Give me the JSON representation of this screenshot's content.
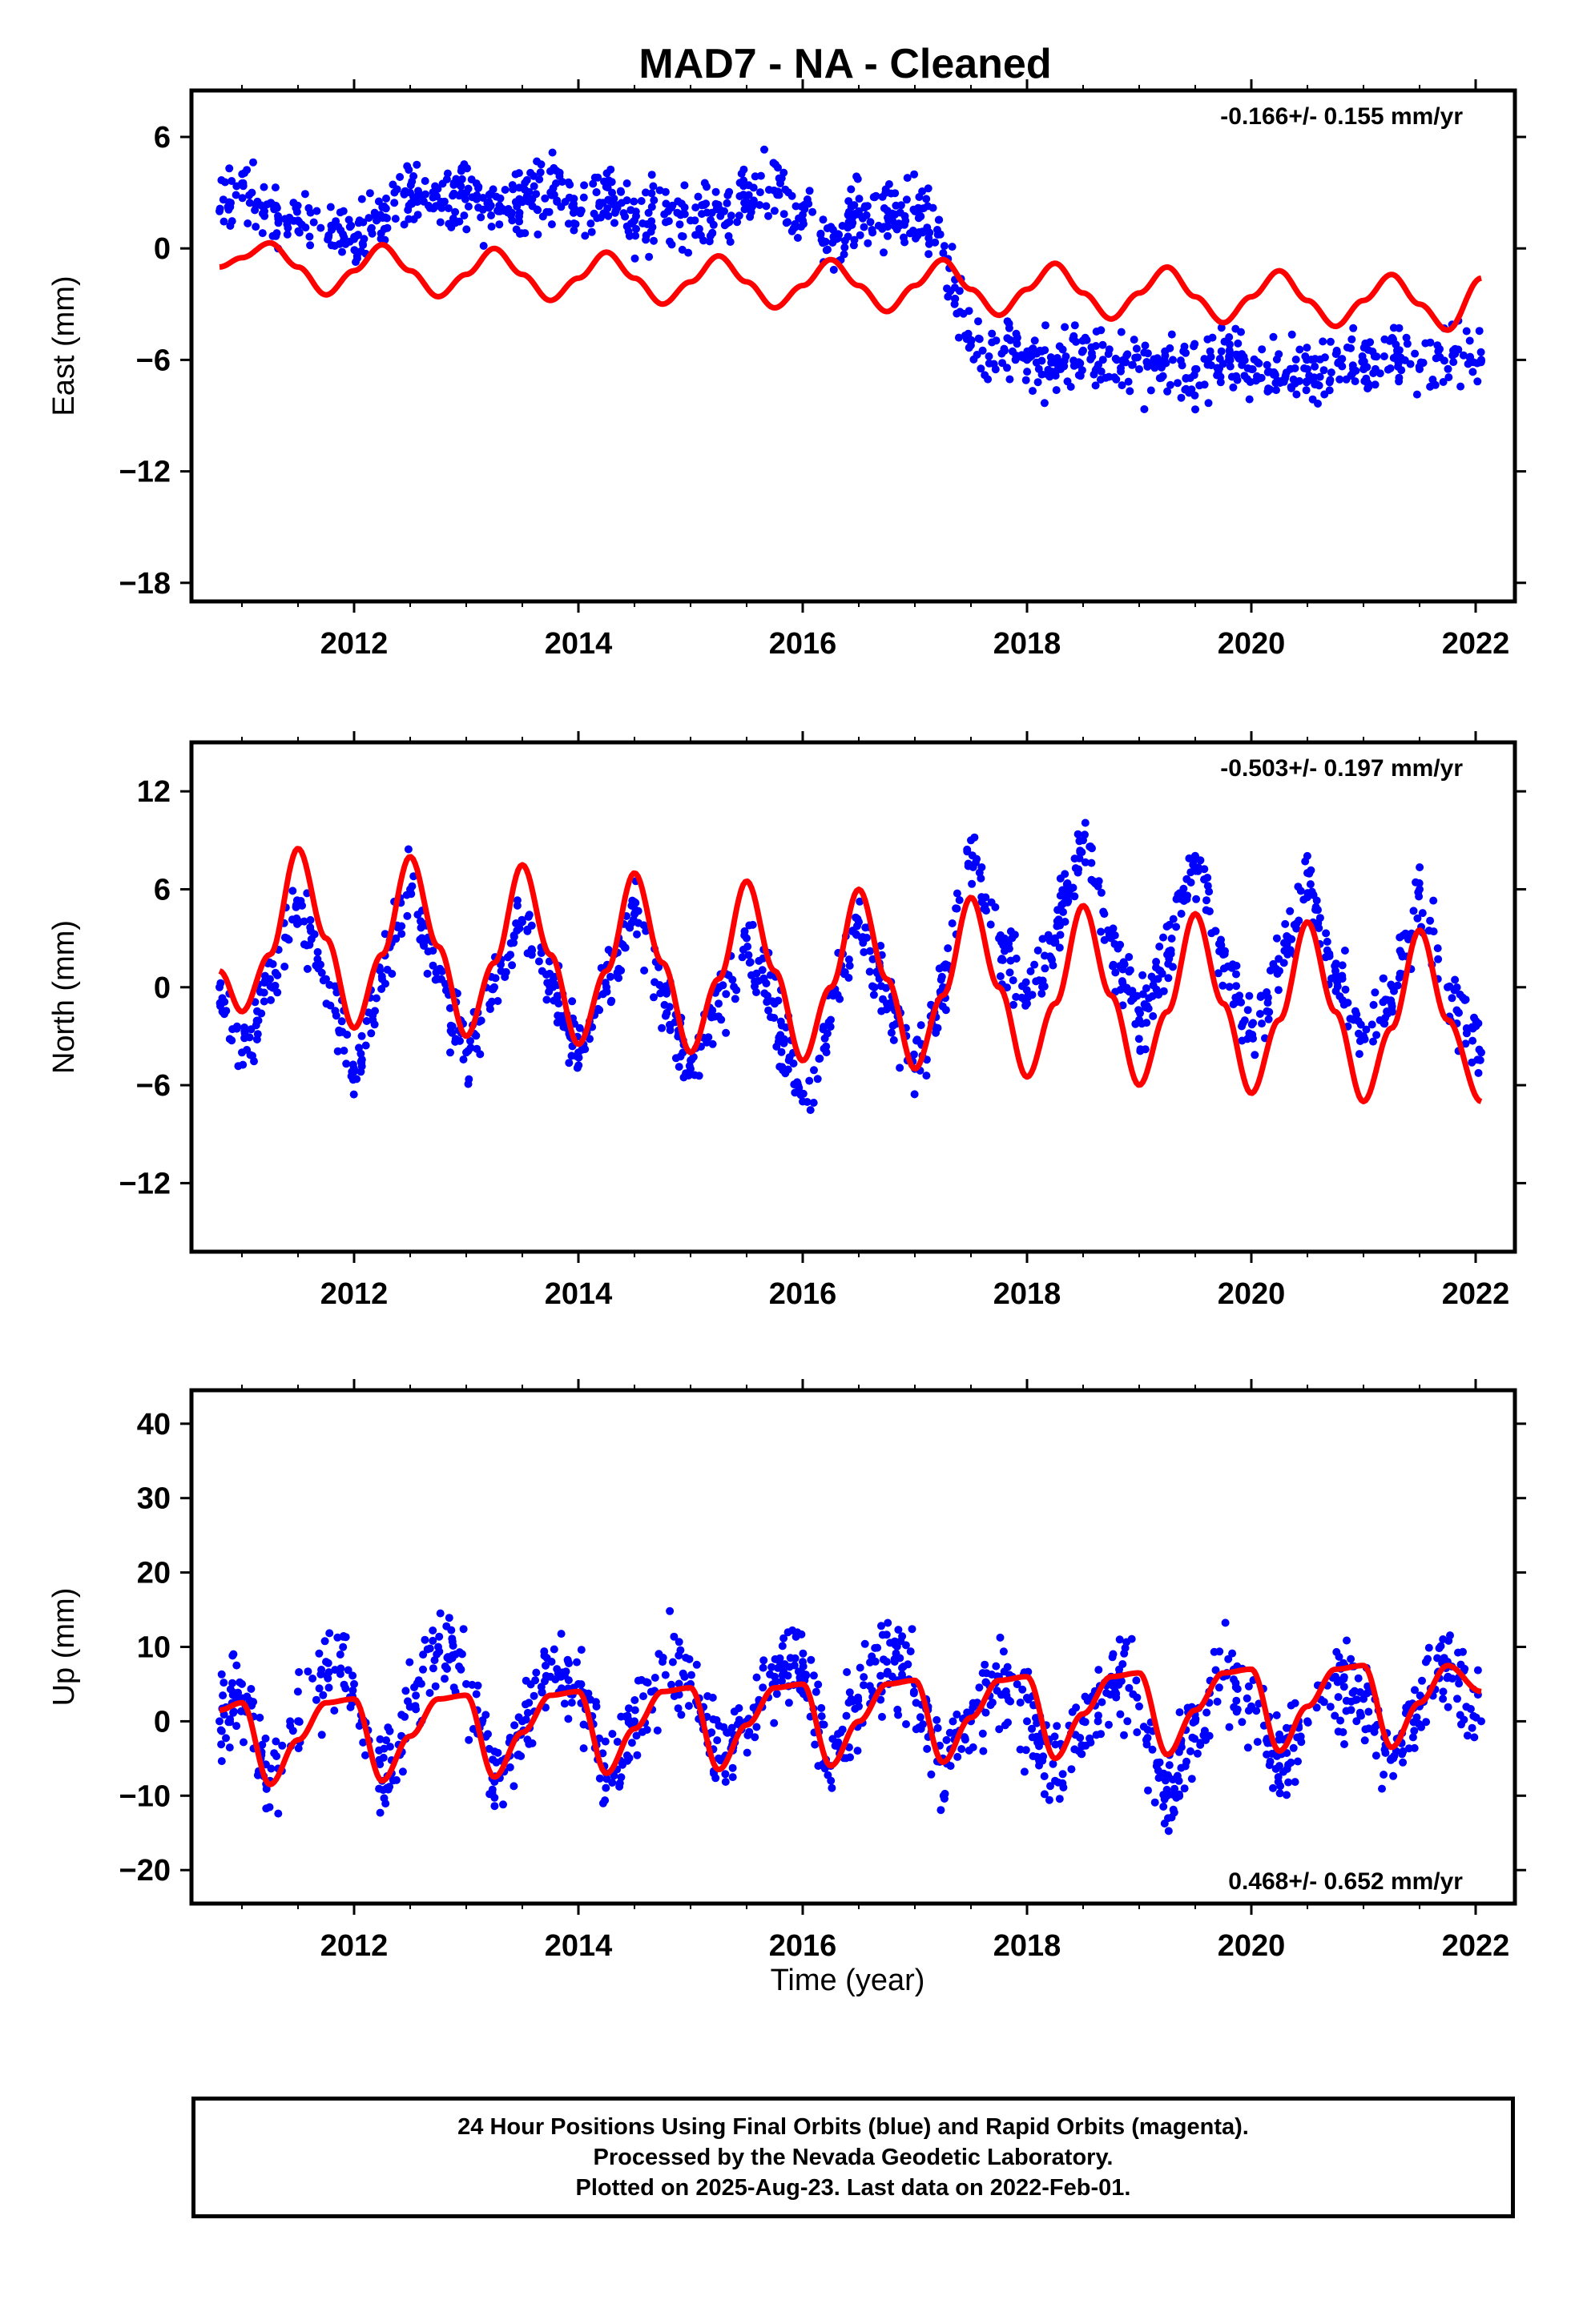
{
  "title": "MAD7  - NA - Cleaned",
  "xlabel": "Time (year)",
  "colors": {
    "points": "#0000ff",
    "fit": "#ff0000",
    "axes": "#000000"
  },
  "chart_data": [
    {
      "type": "scatter",
      "ylabel": "East (mm)",
      "rate_label": "-0.166+/- 0.155 mm/yr",
      "xlim": [
        2010.55,
        2022.35
      ],
      "ylim": [
        -19.0,
        8.5
      ],
      "xticks": [
        2012,
        2014,
        2016,
        2018,
        2020,
        2022
      ],
      "yticks": [
        6,
        0,
        -6,
        -12,
        -18
      ],
      "ytick_labels": [
        "6",
        "0",
        "−6",
        "−12",
        "−18"
      ],
      "grid": false,
      "series": [
        {
          "kind": "scatter",
          "x": [
            2010.8,
            2011.0,
            2011.2,
            2011.5,
            2011.8,
            2012.0,
            2012.2,
            2012.5,
            2012.8,
            2013.0,
            2013.3,
            2013.5,
            2013.8,
            2014.0,
            2014.3,
            2014.5,
            2014.8,
            2015.0,
            2015.3,
            2015.5,
            2015.8,
            2016.0,
            2016.3,
            2016.5,
            2016.8,
            2017.0,
            2017.2,
            2017.5,
            2017.8,
            2018.0,
            2018.3,
            2018.5,
            2018.8,
            2019.0,
            2019.3,
            2019.5,
            2019.8,
            2020.0,
            2020.3,
            2020.5,
            2020.8,
            2021.0,
            2021.3,
            2021.5,
            2021.8,
            2022.05
          ],
          "y": [
            2.0,
            3.5,
            2.0,
            1.5,
            1.0,
            0.5,
            1.5,
            3.0,
            2.5,
            3.0,
            2.0,
            2.5,
            3.5,
            2.0,
            3.0,
            1.5,
            2.0,
            1.5,
            2.0,
            2.5,
            3.5,
            1.5,
            0.5,
            2.0,
            1.5,
            2.0,
            1.0,
            -5.0,
            -5.5,
            -6.0,
            -6.5,
            -5.5,
            -6.0,
            -6.5,
            -6.0,
            -6.5,
            -6.0,
            -6.5,
            -7.0,
            -6.5,
            -6.0,
            -6.5,
            -5.5,
            -6.5,
            -5.5,
            -6.0
          ]
        },
        {
          "kind": "fit",
          "x": [
            2010.8,
            2011.0,
            2011.25,
            2011.5,
            2011.75,
            2012.0,
            2012.25,
            2012.5,
            2012.75,
            2013.0,
            2013.25,
            2013.5,
            2013.75,
            2014.0,
            2014.25,
            2014.5,
            2014.75,
            2015.0,
            2015.25,
            2015.5,
            2015.75,
            2016.0,
            2016.25,
            2016.5,
            2016.75,
            2017.0,
            2017.25,
            2017.5,
            2017.75,
            2018.0,
            2018.25,
            2018.5,
            2018.75,
            2019.0,
            2019.25,
            2019.5,
            2019.75,
            2020.0,
            2020.25,
            2020.5,
            2020.75,
            2021.0,
            2021.25,
            2021.5,
            2021.75,
            2022.05
          ],
          "y": [
            -1.0,
            -0.5,
            0.3,
            -1.0,
            -2.5,
            -1.2,
            0.2,
            -1.2,
            -2.6,
            -1.4,
            0.0,
            -1.4,
            -2.8,
            -1.6,
            -0.2,
            -1.6,
            -3.0,
            -1.8,
            -0.4,
            -1.8,
            -3.2,
            -2.0,
            -0.6,
            -2.0,
            -3.4,
            -2.0,
            -0.6,
            -2.2,
            -3.6,
            -2.2,
            -0.8,
            -2.4,
            -3.8,
            -2.4,
            -1.0,
            -2.6,
            -4.0,
            -2.6,
            -1.2,
            -2.8,
            -4.2,
            -2.8,
            -1.4,
            -3.0,
            -4.4,
            -1.6
          ]
        }
      ]
    },
    {
      "type": "scatter",
      "ylabel": "North (mm)",
      "rate_label": "-0.503+/- 0.197 mm/yr",
      "xlim": [
        2010.55,
        2022.35
      ],
      "ylim": [
        -16.2,
        15.0
      ],
      "xticks": [
        2012,
        2014,
        2016,
        2018,
        2020,
        2022
      ],
      "yticks": [
        12,
        6,
        0,
        -6,
        -12
      ],
      "ytick_labels": [
        "12",
        "6",
        "0",
        "−6",
        "−12"
      ],
      "grid": false,
      "series": [
        {
          "kind": "scatter",
          "x": [
            2010.8,
            2011.0,
            2011.25,
            2011.5,
            2011.75,
            2012.0,
            2012.25,
            2012.5,
            2012.75,
            2013.0,
            2013.25,
            2013.5,
            2013.75,
            2014.0,
            2014.25,
            2014.5,
            2014.75,
            2015.0,
            2015.25,
            2015.5,
            2015.75,
            2016.0,
            2016.25,
            2016.5,
            2016.75,
            2017.0,
            2017.25,
            2017.5,
            2017.75,
            2018.0,
            2018.25,
            2018.5,
            2018.75,
            2019.0,
            2019.25,
            2019.5,
            2019.75,
            2020.0,
            2020.25,
            2020.5,
            2020.75,
            2021.0,
            2021.25,
            2021.5,
            2021.75,
            2022.05
          ],
          "y": [
            0.0,
            -4.0,
            0.5,
            5.0,
            0.5,
            -5.0,
            0.5,
            6.0,
            0.5,
            -4.0,
            0.0,
            4.0,
            0.0,
            -4.0,
            0.0,
            4.5,
            0.0,
            -5.0,
            -1.0,
            3.0,
            -1.0,
            -7.0,
            -2.0,
            4.0,
            -1.0,
            -5.0,
            0.0,
            9.0,
            3.0,
            -1.0,
            3.0,
            9.0,
            3.0,
            -2.0,
            2.0,
            8.0,
            2.0,
            -3.0,
            1.0,
            7.0,
            1.0,
            -3.0,
            -1.0,
            6.0,
            0.0,
            -4.0
          ]
        },
        {
          "kind": "fit",
          "x": [
            2010.8,
            2011.0,
            2011.25,
            2011.5,
            2011.75,
            2012.0,
            2012.25,
            2012.5,
            2012.75,
            2013.0,
            2013.25,
            2013.5,
            2013.75,
            2014.0,
            2014.25,
            2014.5,
            2014.75,
            2015.0,
            2015.25,
            2015.5,
            2015.75,
            2016.0,
            2016.25,
            2016.5,
            2016.75,
            2017.0,
            2017.25,
            2017.5,
            2017.75,
            2018.0,
            2018.25,
            2018.5,
            2018.75,
            2019.0,
            2019.25,
            2019.5,
            2019.75,
            2020.0,
            2020.25,
            2020.5,
            2020.75,
            2021.0,
            2021.25,
            2021.5,
            2021.75,
            2022.05
          ],
          "y": [
            1.0,
            -1.5,
            2.0,
            8.5,
            3.0,
            -2.5,
            2.0,
            8.0,
            2.5,
            -3.0,
            1.5,
            7.5,
            2.0,
            -3.5,
            1.0,
            7.0,
            1.5,
            -4.0,
            0.5,
            6.5,
            1.0,
            -4.5,
            0.0,
            6.0,
            0.5,
            -5.0,
            -0.5,
            5.5,
            0.0,
            -5.5,
            -1.0,
            5.0,
            -0.5,
            -6.0,
            -1.5,
            4.5,
            -1.0,
            -6.5,
            -2.0,
            4.0,
            -1.5,
            -7.0,
            -2.5,
            3.5,
            -2.0,
            -7.0
          ]
        }
      ]
    },
    {
      "type": "scatter",
      "ylabel": "Up (mm)",
      "rate_label": "0.468+/- 0.652 mm/yr",
      "xlim": [
        2010.55,
        2022.35
      ],
      "ylim": [
        -24.5,
        44.5
      ],
      "xticks": [
        2012,
        2014,
        2016,
        2018,
        2020,
        2022
      ],
      "yticks": [
        40,
        30,
        20,
        10,
        0,
        -10,
        -20
      ],
      "ytick_labels": [
        "40",
        "30",
        "20",
        "10",
        "0",
        "−10",
        "−20"
      ],
      "grid": false,
      "series": [
        {
          "kind": "scatter",
          "x": [
            2010.8,
            2011.0,
            2011.25,
            2011.5,
            2011.75,
            2012.0,
            2012.25,
            2012.5,
            2012.75,
            2013.0,
            2013.25,
            2013.5,
            2013.75,
            2014.0,
            2014.25,
            2014.5,
            2014.75,
            2015.0,
            2015.25,
            2015.5,
            2015.75,
            2016.0,
            2016.25,
            2016.5,
            2016.75,
            2017.0,
            2017.25,
            2017.5,
            2017.75,
            2018.0,
            2018.25,
            2018.5,
            2018.75,
            2019.0,
            2019.25,
            2019.5,
            2019.75,
            2020.0,
            2020.25,
            2020.5,
            2020.75,
            2021.0,
            2021.25,
            2021.5,
            2021.75,
            2022.05
          ],
          "y": [
            0.0,
            5.0,
            -8.0,
            0.0,
            8.0,
            5.0,
            -8.0,
            2.0,
            10.0,
            5.0,
            -8.0,
            0.0,
            6.0,
            5.0,
            -7.0,
            0.0,
            8.0,
            5.0,
            -5.0,
            0.0,
            6.0,
            8.0,
            -6.0,
            2.0,
            8.0,
            5.0,
            -5.0,
            0.0,
            6.0,
            0.0,
            -8.0,
            0.0,
            6.0,
            2.0,
            -10.0,
            0.0,
            6.0,
            2.0,
            -6.0,
            0.0,
            6.0,
            3.0,
            -5.0,
            2.0,
            8.0,
            0.0
          ]
        },
        {
          "kind": "fit",
          "x": [
            2010.8,
            2011.0,
            2011.25,
            2011.5,
            2011.75,
            2012.0,
            2012.25,
            2012.5,
            2012.75,
            2013.0,
            2013.25,
            2013.5,
            2013.75,
            2014.0,
            2014.25,
            2014.5,
            2014.75,
            2015.0,
            2015.25,
            2015.5,
            2015.75,
            2016.0,
            2016.25,
            2016.5,
            2016.75,
            2017.0,
            2017.25,
            2017.5,
            2017.75,
            2018.0,
            2018.25,
            2018.5,
            2018.75,
            2019.0,
            2019.25,
            2019.5,
            2019.75,
            2020.0,
            2020.25,
            2020.5,
            2020.75,
            2021.0,
            2021.25,
            2021.5,
            2021.75,
            2022.05
          ],
          "y": [
            1.5,
            2.5,
            -8.5,
            -2.5,
            2.5,
            3.0,
            -8.0,
            -2.0,
            3.0,
            3.5,
            -7.5,
            -1.5,
            3.5,
            4.0,
            -7.0,
            -1.0,
            4.0,
            4.5,
            -6.5,
            -0.5,
            4.5,
            5.0,
            -6.0,
            0.0,
            5.0,
            5.5,
            -5.5,
            0.5,
            5.5,
            6.0,
            -5.0,
            1.0,
            6.0,
            6.5,
            -4.5,
            1.5,
            6.5,
            7.0,
            -4.0,
            2.0,
            7.0,
            7.5,
            -3.5,
            2.5,
            7.5,
            4.0
          ]
        }
      ]
    }
  ],
  "footer": {
    "line1": "24 Hour Positions Using Final Orbits (blue) and Rapid Orbits (magenta).",
    "line2": "Processed by the Nevada Geodetic Laboratory.",
    "line3": "Plotted on 2025-Aug-23. Last data on 2022-Feb-01."
  }
}
